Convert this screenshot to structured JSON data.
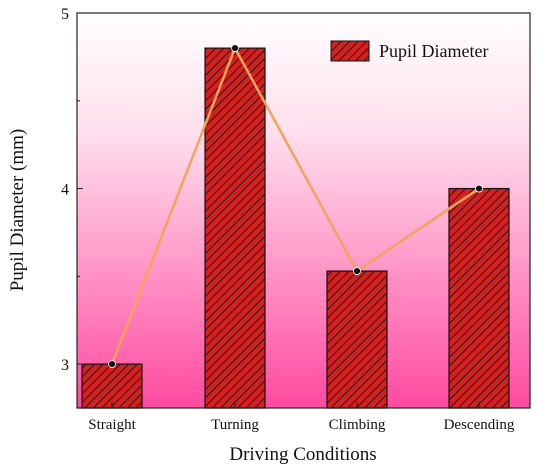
{
  "chart_data": {
    "type": "bar",
    "categories": [
      "Straight",
      "Turning",
      "Climbing",
      "Descending"
    ],
    "series": [
      {
        "name": "Pupil Diameter",
        "values": [
          3.0,
          4.8,
          3.53,
          4.0
        ],
        "fill_color": "#d91e1e",
        "hatch_color": "#1b1b1b",
        "line_color": "#f2a45a",
        "marker_color": "#111111"
      }
    ],
    "xlabel": "Driving Conditions",
    "ylabel": "Pupil Diameter (mm)",
    "ylim": [
      2.75,
      5.0
    ],
    "yticks": [
      3,
      4,
      5
    ],
    "ytick_labels": [
      "3",
      "4",
      "5"
    ],
    "grid": false,
    "legend": {
      "position": "top-right",
      "label": "Pupil Diameter"
    },
    "background_gradient": [
      "#ffffff",
      "#ff4aa0"
    ]
  }
}
